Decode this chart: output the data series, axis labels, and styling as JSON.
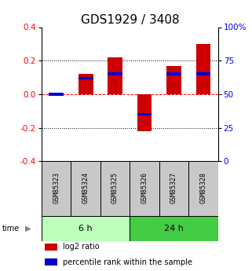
{
  "title": "GDS1929 / 3408",
  "samples": [
    "GSM85323",
    "GSM85324",
    "GSM85325",
    "GSM85326",
    "GSM85327",
    "GSM85328"
  ],
  "log2_ratio": [
    0.0,
    0.12,
    0.22,
    -0.22,
    0.17,
    0.3
  ],
  "percentile_rank": [
    50,
    62,
    65,
    35,
    65,
    65
  ],
  "ylim_left": [
    -0.4,
    0.4
  ],
  "ylim_right": [
    0,
    100
  ],
  "yticks_left": [
    -0.4,
    -0.2,
    0.0,
    0.2,
    0.4
  ],
  "yticks_right": [
    0,
    25,
    50,
    75,
    100
  ],
  "ytick_labels_right": [
    "0",
    "25",
    "50",
    "75",
    "100%"
  ],
  "dotted_lines_black": [
    -0.2,
    0.2
  ],
  "dashed_line_red": 0.0,
  "time_groups": [
    {
      "label": "6 h",
      "start": 0,
      "end": 3,
      "color": "#bbffbb"
    },
    {
      "label": "24 h",
      "start": 3,
      "end": 6,
      "color": "#44cc44"
    }
  ],
  "bar_width": 0.5,
  "red_color": "#cc0000",
  "blue_color": "#0000cc",
  "gray_bg": "#c8c8c8",
  "legend_items": [
    {
      "label": "log2 ratio",
      "color": "#cc0000"
    },
    {
      "label": "percentile rank within the sample",
      "color": "#0000cc"
    }
  ],
  "title_fontsize": 11,
  "tick_fontsize": 7.5,
  "sample_fontsize": 6,
  "time_fontsize": 8,
  "legend_fontsize": 7
}
